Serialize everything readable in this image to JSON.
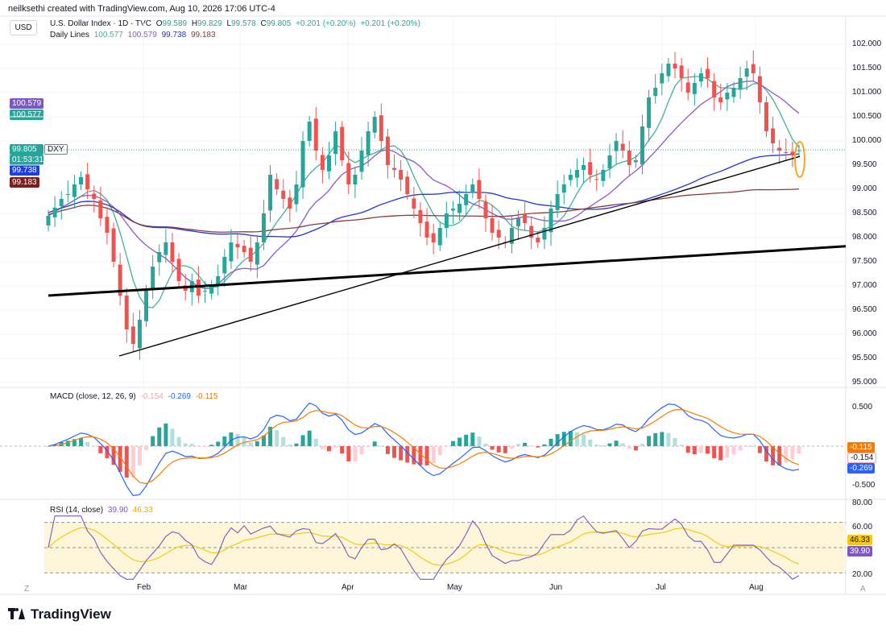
{
  "header": {
    "credit": "neilksethi created with TradingView.com, Aug 10, 2026 17:06 UTC-4",
    "currency_button": "USD"
  },
  "colors": {
    "up": "#26a69a",
    "down": "#ef5350",
    "sma20": "#3cb39b",
    "sma50": "#8e58c9",
    "sma100": "#2135cf",
    "sma200": "#8a3b3b",
    "macd": "#2962ff",
    "signal": "#f57c00",
    "rsi": "#7e57c2",
    "rsi_ma": "#f6c90e"
  },
  "chart_data": [
    {
      "type": "candlestick",
      "title": "U.S. Dollar Index · 1D · TVC",
      "symbol": "DXY",
      "ohlc": {
        "open_label": "O",
        "open": "99.589",
        "high_label": "H",
        "high": "99.829",
        "low_label": "L",
        "low": "99.578",
        "close_label": "C",
        "close": "99.805",
        "change": "+0.201 (+0.20%)",
        "change2": "+0.201 (+0.20%)"
      },
      "moving_averages": {
        "label": "Daily Lines",
        "values": [
          "100.577",
          "100.579",
          "99.738",
          "99.183"
        ]
      },
      "price_tags": {
        "sma50": "100.579",
        "sma20": "100.577",
        "last": "99.805",
        "symbol": "DXY",
        "countdown": "01:53:31",
        "sma100": "99.738",
        "sma200": "99.183"
      },
      "ylim": [
        95,
        102
      ],
      "y_ticks": [
        "102.000",
        "101.500",
        "101.000",
        "100.500",
        "100.000",
        "99.500",
        "99.000",
        "98.500",
        "98.000",
        "97.500",
        "97.000",
        "96.500",
        "96.000",
        "95.500",
        "95.000"
      ],
      "x_ticks": [
        "Feb",
        "Mar",
        "Apr",
        "May",
        "Jun",
        "Jul",
        "Aug"
      ],
      "closes": [
        98.45,
        98.62,
        98.8,
        98.9,
        99.1,
        99.25,
        99.0,
        98.8,
        98.4,
        98.1,
        97.5,
        96.8,
        96.1,
        95.8,
        96.3,
        96.9,
        97.4,
        97.7,
        97.9,
        97.5,
        97.1,
        96.9,
        97.1,
        96.8,
        96.9,
        97.0,
        97.2,
        97.6,
        97.9,
        97.8,
        97.7,
        97.5,
        97.9,
        98.5,
        99.3,
        99.0,
        98.8,
        98.6,
        99.1,
        100.0,
        100.4,
        99.8,
        99.4,
        99.7,
        100.2,
        99.6,
        99.1,
        99.3,
        99.8,
        100.2,
        100.5,
        100.0,
        99.5,
        99.4,
        99.2,
        98.9,
        98.6,
        98.3,
        98.0,
        97.9,
        98.2,
        98.5,
        98.6,
        98.7,
        98.9,
        99.1,
        98.8,
        98.4,
        98.1,
        98.0,
        97.9,
        98.2,
        98.4,
        98.3,
        98.0,
        97.9,
        98.2,
        98.6,
        98.9,
        99.1,
        99.3,
        99.4,
        99.5,
        99.3,
        99.2,
        99.4,
        99.7,
        100.0,
        99.8,
        99.5,
        99.6,
        100.3,
        100.9,
        101.1,
        101.4,
        101.6,
        101.5,
        101.3,
        101.0,
        101.2,
        101.4,
        101.3,
        100.9,
        100.8,
        101.0,
        101.1,
        101.3,
        101.5,
        101.4,
        100.8,
        100.2,
        99.95,
        99.8,
        99.75,
        99.7,
        99.805
      ],
      "support_lines": [
        {
          "label": "long-term trendline",
          "from": [
            "Jan 08",
            96.8
          ],
          "to": [
            "Aug 21",
            97.82
          ]
        },
        {
          "label": "short-term trendline",
          "from": [
            "Jan 22",
            95.55
          ],
          "to": [
            "Aug 10",
            99.68
          ]
        }
      ]
    },
    {
      "type": "macd",
      "legend": "MACD (close, 12, 26, 9)",
      "values": [
        "-0.154",
        "-0.269",
        "-0.115"
      ],
      "y_ticks": [
        "0.500",
        "-0.500"
      ],
      "tags": {
        "signal": "-0.115",
        "hist": "-0.154",
        "macd": "-0.269"
      }
    },
    {
      "type": "line",
      "legend": "RSI (14, close)",
      "values": [
        "39.90",
        "46.33"
      ],
      "y_ticks": [
        "80.00",
        "60.00",
        "20.00"
      ],
      "levels": [
        70,
        50,
        30
      ],
      "tags": {
        "rsi_ma": "46.33",
        "rsi": "39.90"
      },
      "ylim": [
        15,
        85
      ]
    }
  ],
  "brand": "TradingView",
  "corner_left": "Z",
  "corner_right": "A"
}
